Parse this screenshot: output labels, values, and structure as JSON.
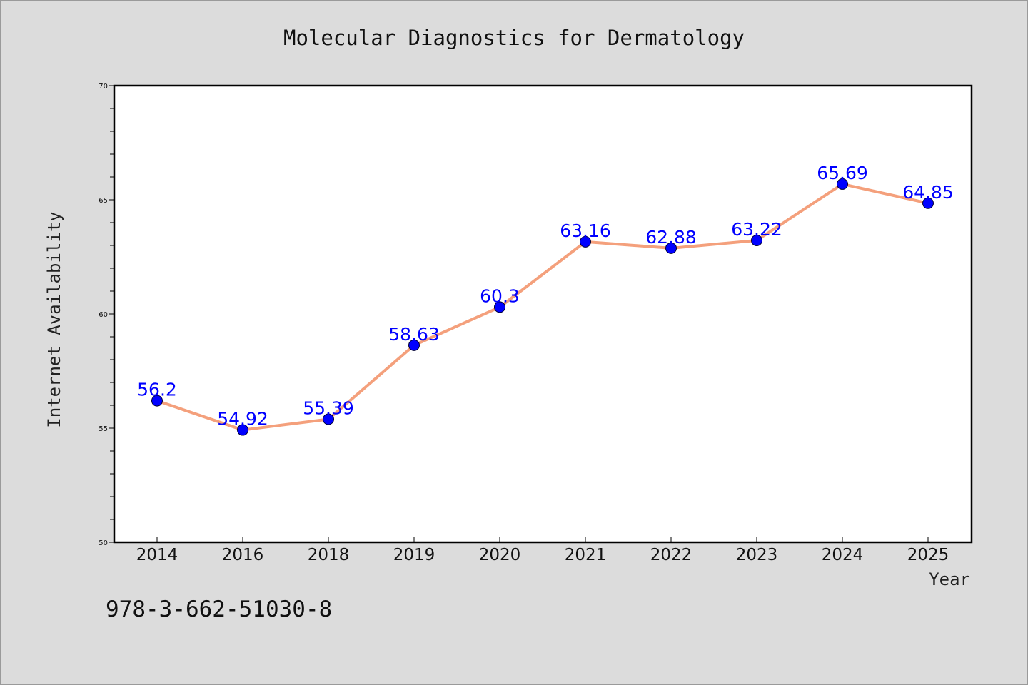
{
  "chart_data": {
    "type": "line",
    "title": "Molecular Diagnostics for Dermatology",
    "xlabel": "Year",
    "ylabel": "Internet Availability",
    "categories": [
      "2014",
      "2016",
      "2018",
      "2019",
      "2020",
      "2021",
      "2022",
      "2023",
      "2024",
      "2025"
    ],
    "values": [
      56.2,
      54.92,
      55.39,
      58.63,
      60.3,
      63.16,
      62.88,
      63.22,
      65.69,
      64.85
    ],
    "data_labels": [
      "56.2",
      "54.92",
      "55.39",
      "58.63",
      "60.3",
      "63.16",
      "62.88",
      "63.22",
      "65.69",
      "64.85"
    ],
    "ylim": [
      50,
      70
    ],
    "yticks": [
      "50",
      "55",
      "60",
      "65",
      "70"
    ],
    "y_minor_step": 1,
    "grid": false,
    "line_color": "#f4a07c",
    "marker_color": "#0000ff",
    "label_color": "#0000ff",
    "background": "#dcdcdc",
    "plot_background": "#ffffff"
  },
  "footer": {
    "isbn": "978-3-662-51030-8"
  }
}
